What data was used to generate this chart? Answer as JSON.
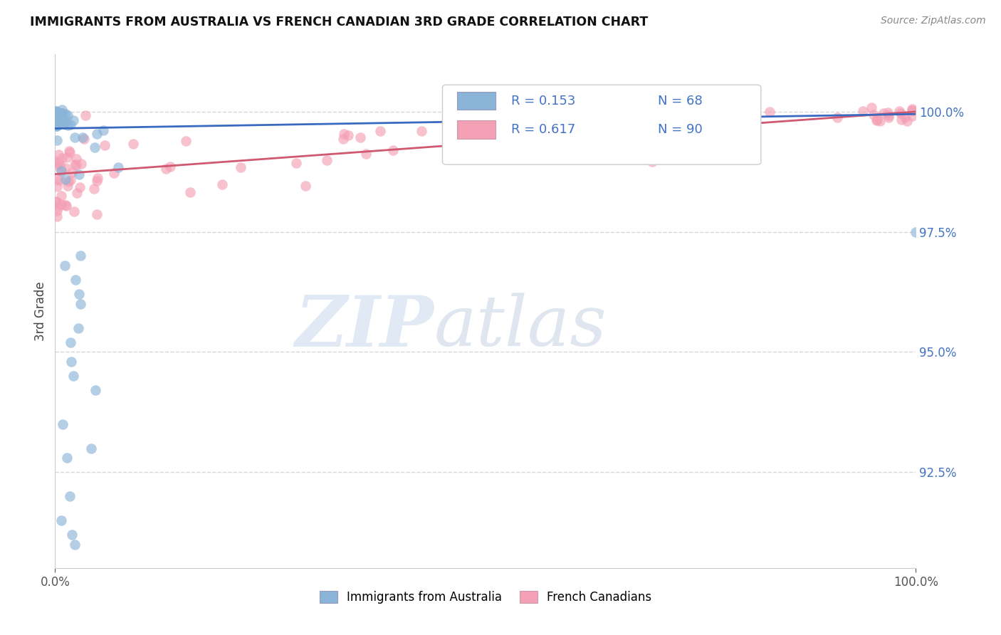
{
  "title": "IMMIGRANTS FROM AUSTRALIA VS FRENCH CANADIAN 3RD GRADE CORRELATION CHART",
  "source": "Source: ZipAtlas.com",
  "ylabel": "3rd Grade",
  "xlim": [
    0.0,
    100.0
  ],
  "ylim": [
    90.5,
    101.2
  ],
  "yticks_right": [
    92.5,
    95.0,
    97.5,
    100.0
  ],
  "ytick_labels_right": [
    "92.5%",
    "95.0%",
    "97.5%",
    "100.0%"
  ],
  "series1_label": "Immigrants from Australia",
  "series1_color": "#8ab4d8",
  "series1_edge": "#6090c0",
  "series2_label": "French Canadians",
  "series2_color": "#f4a0b5",
  "series2_edge": "#d07090",
  "line1_color": "#3a6abf",
  "line2_color": "#d05870",
  "legend_text_color": "#4472c4",
  "background_color": "#ffffff",
  "grid_color": "#cccccc",
  "title_color": "#111111",
  "source_color": "#888888",
  "ylabel_color": "#444444"
}
